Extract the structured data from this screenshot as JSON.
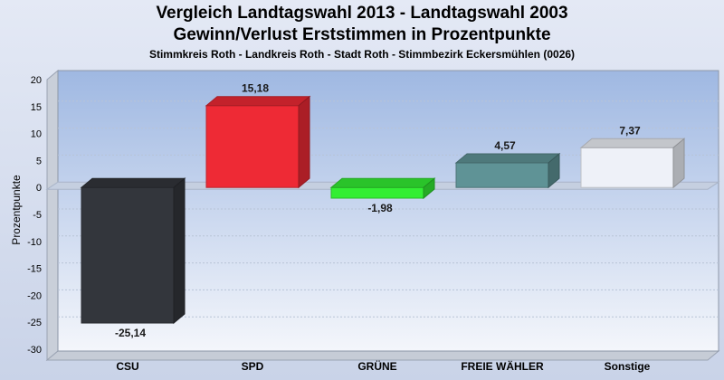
{
  "title": "Vergleich Landtagswahl 2013 - Landtagswahl 2003",
  "subtitle": "Gewinn/Verlust Erststimmen in Prozentpunkte",
  "subtitle2": "Stimmkreis Roth - Landkreis Roth - Stadt Roth - Stimmbezirk Eckersmühlen (0026)",
  "chart_data": {
    "type": "bar",
    "title": "Vergleich Landtagswahl 2013 - Landtagswahl 2003",
    "subtitle": "Gewinn/Verlust Erststimmen in Prozentpunkte",
    "xlabel": "",
    "ylabel": "Prozentpunkte",
    "ylim": [
      -30,
      20
    ],
    "yticks": [
      20,
      15,
      10,
      5,
      0,
      -5,
      -10,
      -15,
      -20,
      -25,
      -30
    ],
    "grid": true,
    "categories": [
      "CSU",
      "SPD",
      "GRÜNE",
      "FREIE WÄHLER",
      "Sonstige"
    ],
    "values": [
      -25.14,
      15.18,
      -1.98,
      4.57,
      7.37
    ],
    "labels": [
      "-25,14",
      "15,18",
      "-1,98",
      "4,57",
      "7,37"
    ],
    "colors": [
      "#33363c",
      "#ee2a35",
      "#33ee33",
      "#5f9396",
      "#eef1f8"
    ]
  }
}
